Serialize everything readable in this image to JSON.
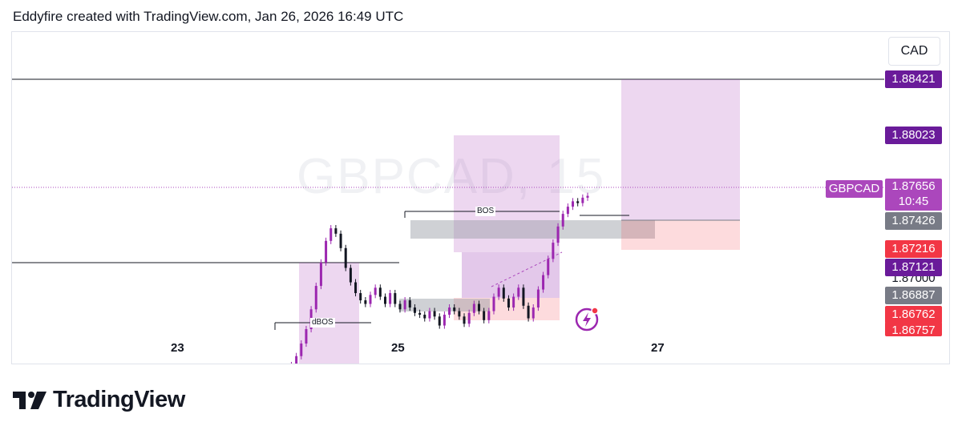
{
  "header": {
    "caption": "Eddyfire created with TradingView.com, Jan 26, 2026 16:49 UTC"
  },
  "watermark": "GBPCAD, 15",
  "currency": "CAD",
  "symbol": "GBPCAD",
  "last_price": {
    "price": "1.87656",
    "countdown": "10:45",
    "color": "#ab47bc"
  },
  "price_tags": [
    {
      "label": "1.88421",
      "color": "#6a1b9a"
    },
    {
      "label": "1.88023",
      "color": "#6a1b9a"
    },
    {
      "label": "1.87426",
      "color": "#787b86"
    },
    {
      "label": "1.87216",
      "color": "#f23645"
    },
    {
      "label": "1.87121",
      "color": "#6a1b9a"
    },
    {
      "label": "1.87000",
      "color": ""
    },
    {
      "label": "1.86887",
      "color": "#787b86"
    },
    {
      "label": "1.86762",
      "color": "#f23645"
    },
    {
      "label": "1.86757",
      "color": "#f23645"
    }
  ],
  "annotations": {
    "bos": "BOS",
    "dbos": "dBOS"
  },
  "logo": {
    "text": "TradingView"
  },
  "chart_data": {
    "type": "candlestick",
    "symbol": "GBPCAD",
    "interval": "15",
    "x_ticks": [
      "23",
      "25",
      "27"
    ],
    "y_range": [
      1.8672,
      1.8857
    ],
    "horizontal_levels": [
      1.88421,
      1.87121
    ],
    "current_price": 1.87656,
    "close_series": [
      1.8663,
      1.8666,
      1.8669,
      1.8672,
      1.8677,
      1.8684,
      1.8692,
      1.8703,
      1.8716,
      1.8729,
      1.8741,
      1.8748,
      1.8745,
      1.8737,
      1.8726,
      1.8718,
      1.8712,
      1.8708,
      1.8706,
      1.8711,
      1.8715,
      1.871,
      1.8706,
      1.8712,
      1.8706,
      1.8703,
      1.8708,
      1.8704,
      1.8701,
      1.87,
      1.8698,
      1.8702,
      1.8699,
      1.8694,
      1.87,
      1.8704,
      1.8702,
      1.8699,
      1.8695,
      1.8701,
      1.8706,
      1.8702,
      1.8697,
      1.8702,
      1.871,
      1.8715,
      1.8709,
      1.8704,
      1.871,
      1.8715,
      1.8705,
      1.8698,
      1.8704,
      1.8714,
      1.8722,
      1.8731,
      1.874,
      1.8749,
      1.8756,
      1.876,
      1.8763,
      1.8762,
      1.8765,
      1.8766
    ]
  }
}
